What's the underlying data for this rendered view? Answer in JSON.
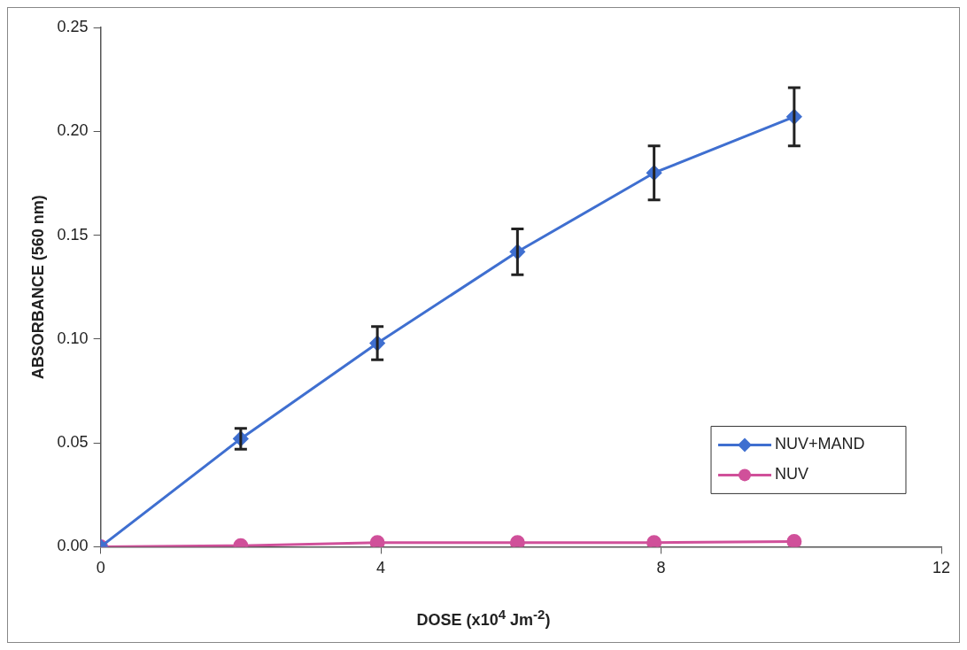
{
  "chart_data": {
    "type": "line",
    "xlabel": "DOSE (x10$^{4}$ Jm$^{-2}$)",
    "ylabel": "ABSORBANCE (560 nm)",
    "x": [
      0,
      2,
      3.95,
      5.95,
      7.9,
      9.9
    ],
    "series": [
      {
        "name": "NUV+MAND",
        "color": "#3f6fd0",
        "marker": "diamond",
        "values": [
          0,
          0.052,
          0.098,
          0.142,
          0.18,
          0.207
        ],
        "errors": [
          null,
          0.005,
          0.008,
          0.011,
          0.013,
          0.014
        ]
      },
      {
        "name": "NUV",
        "color": "#d0509a",
        "marker": "circle",
        "values": [
          0,
          0.0005,
          0.002,
          0.002,
          0.002,
          0.0025
        ]
      }
    ],
    "xlim": [
      0,
      12
    ],
    "xticks": [
      0,
      4,
      8,
      12
    ],
    "ylim": [
      0,
      0.25
    ],
    "yticks": [
      {
        "value": 0,
        "label": "0.00"
      },
      {
        "value": 0.05,
        "label": "0.05"
      },
      {
        "value": 0.1,
        "label": "0.10"
      },
      {
        "value": 0.15,
        "label": "0.15"
      },
      {
        "value": 0.2,
        "label": "0.20"
      },
      {
        "value": 0.25,
        "label": "0.25"
      }
    ],
    "grid": false,
    "legend": "bottom right",
    "line_style": "solid"
  }
}
